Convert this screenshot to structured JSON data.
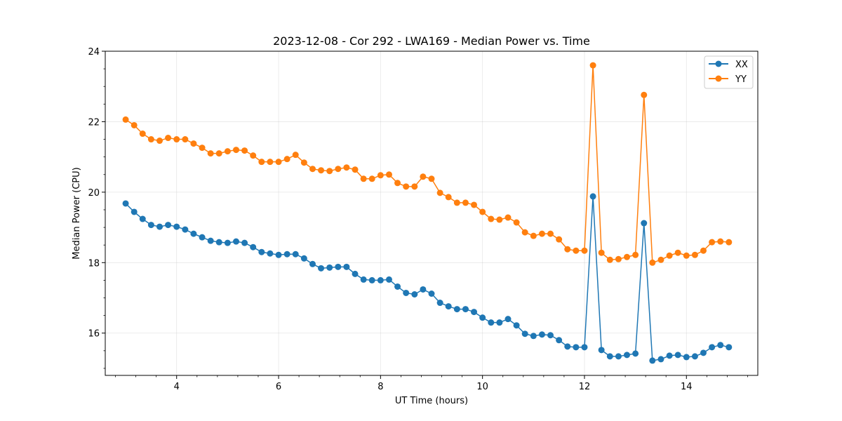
{
  "chart_data": {
    "type": "line",
    "title": "2023-12-08 - Cor 292 - LWA169 - Median Power vs. Time",
    "xlabel": "UT Time (hours)",
    "ylabel": "Median Power (CPU)",
    "xlim": [
      2.6,
      15.4
    ],
    "ylim": [
      14.8,
      24.0
    ],
    "xticks": [
      4,
      6,
      8,
      10,
      12,
      14
    ],
    "yticks": [
      16,
      18,
      20,
      22,
      24
    ],
    "grid": true,
    "legend_position": "top-right",
    "x": [
      3.0,
      3.167,
      3.333,
      3.5,
      3.667,
      3.833,
      4.0,
      4.167,
      4.333,
      4.5,
      4.667,
      4.833,
      5.0,
      5.167,
      5.333,
      5.5,
      5.667,
      5.833,
      6.0,
      6.167,
      6.333,
      6.5,
      6.667,
      6.833,
      7.0,
      7.167,
      7.333,
      7.5,
      7.667,
      7.833,
      8.0,
      8.167,
      8.333,
      8.5,
      8.667,
      8.833,
      9.0,
      9.167,
      9.333,
      9.5,
      9.667,
      9.833,
      10.0,
      10.167,
      10.333,
      10.5,
      10.667,
      10.833,
      11.0,
      11.167,
      11.333,
      11.5,
      11.667,
      11.833,
      12.0,
      12.167,
      12.333,
      12.5,
      12.667,
      12.833,
      13.0,
      13.167,
      13.333,
      13.5,
      13.667,
      13.833,
      14.0,
      14.167,
      14.333,
      14.5,
      14.667,
      14.833
    ],
    "series": [
      {
        "name": "XX",
        "color": "#1f77b4",
        "values": [
          19.68,
          19.44,
          19.24,
          19.07,
          19.02,
          19.07,
          19.02,
          18.94,
          18.82,
          18.72,
          18.62,
          18.58,
          18.56,
          18.6,
          18.56,
          18.44,
          18.3,
          18.26,
          18.22,
          18.24,
          18.24,
          18.12,
          17.96,
          17.84,
          17.86,
          17.88,
          17.88,
          17.68,
          17.52,
          17.5,
          17.5,
          17.52,
          17.32,
          17.14,
          17.1,
          17.24,
          17.12,
          16.86,
          16.76,
          16.68,
          16.68,
          16.6,
          16.44,
          16.3,
          16.3,
          16.4,
          16.22,
          15.98,
          15.92,
          15.96,
          15.94,
          15.8,
          15.62,
          15.6,
          15.6,
          19.88,
          15.52,
          15.34,
          15.34,
          15.38,
          15.42,
          19.12,
          15.22,
          15.26,
          15.36,
          15.38,
          15.32,
          15.34,
          15.44,
          15.6,
          15.66,
          15.6
        ]
      },
      {
        "name": "YY",
        "color": "#ff7f0e",
        "values": [
          22.06,
          21.9,
          21.66,
          21.5,
          21.46,
          21.54,
          21.5,
          21.5,
          21.38,
          21.26,
          21.1,
          21.1,
          21.16,
          21.2,
          21.18,
          21.04,
          20.86,
          20.86,
          20.86,
          20.94,
          21.06,
          20.84,
          20.66,
          20.62,
          20.6,
          20.66,
          20.7,
          20.64,
          20.38,
          20.38,
          20.48,
          20.5,
          20.26,
          20.16,
          20.16,
          20.44,
          20.38,
          19.98,
          19.86,
          19.7,
          19.7,
          19.64,
          19.44,
          19.24,
          19.22,
          19.28,
          19.14,
          18.86,
          18.76,
          18.82,
          18.82,
          18.66,
          18.38,
          18.34,
          18.34,
          23.6,
          18.28,
          18.08,
          18.1,
          18.16,
          18.22,
          22.76,
          18.0,
          18.08,
          18.2,
          18.28,
          18.2,
          18.22,
          18.34,
          18.58,
          18.6,
          18.58
        ]
      }
    ]
  }
}
